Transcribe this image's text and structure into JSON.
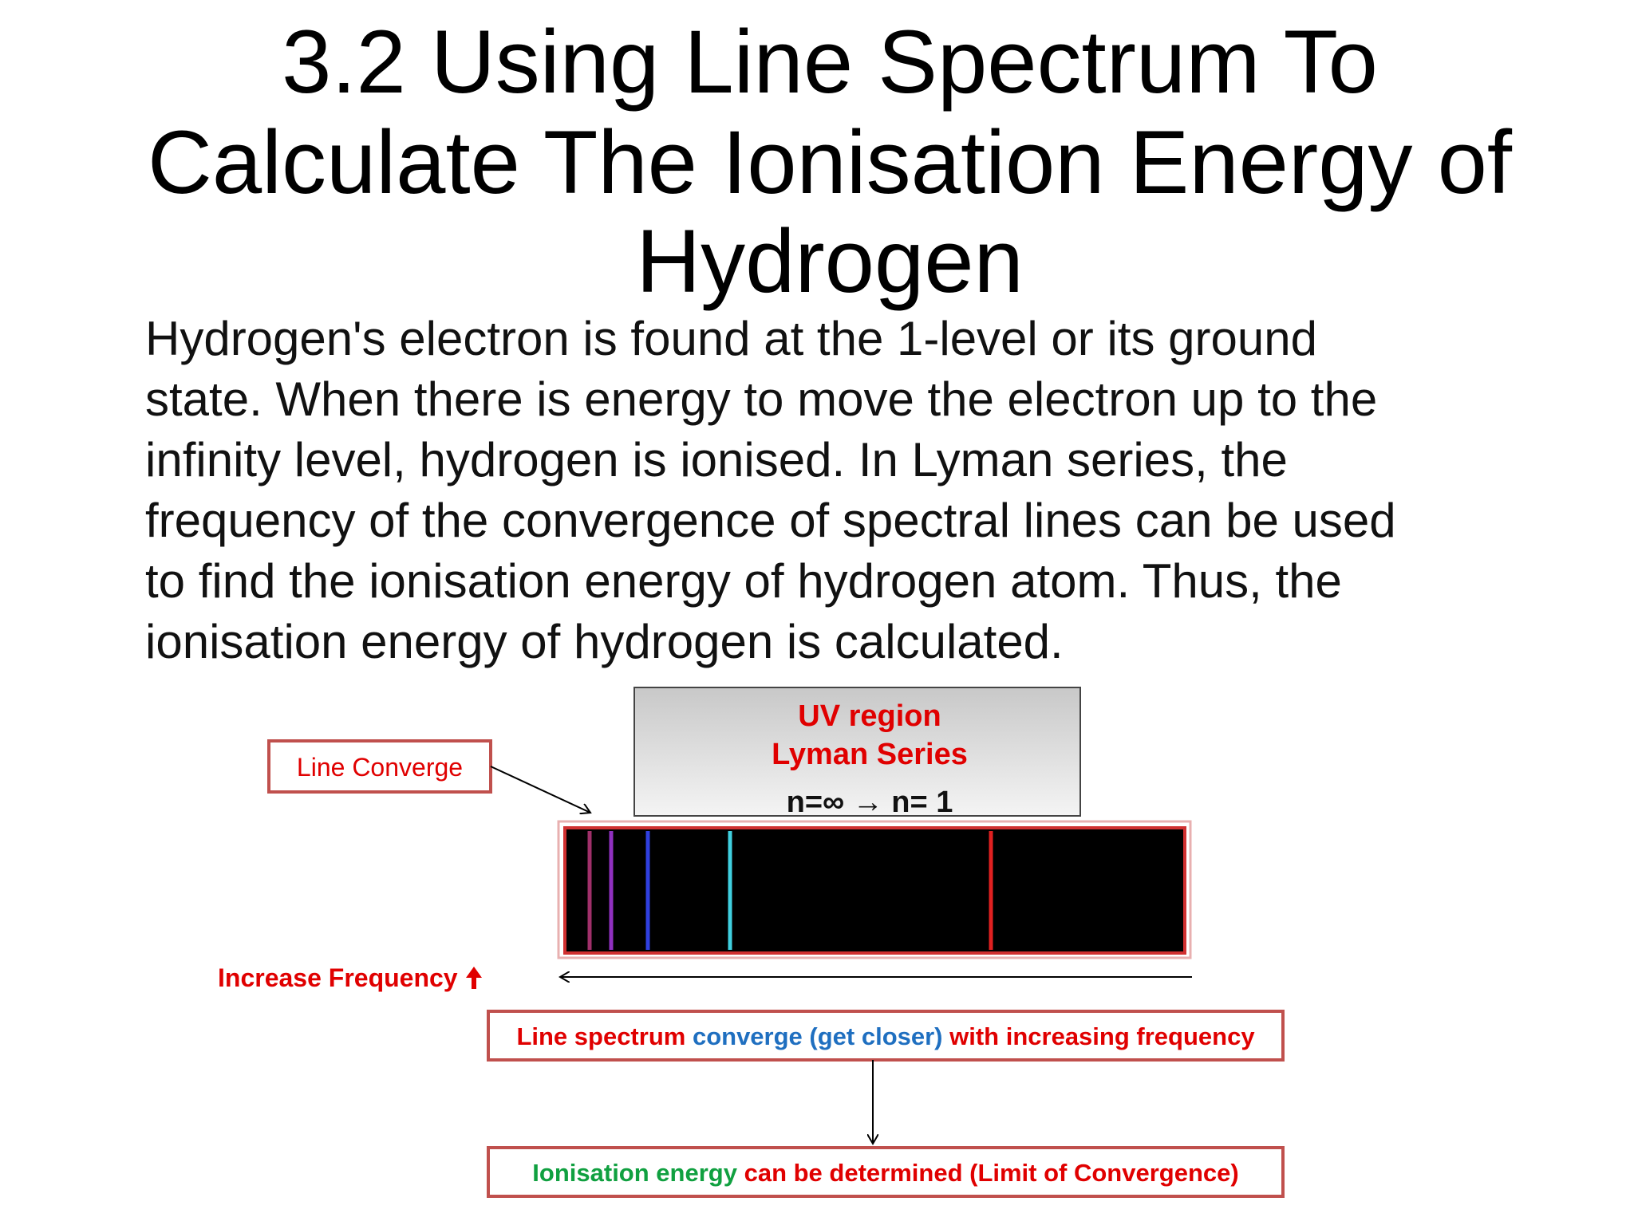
{
  "header": {
    "title_lines": [
      "3.2 Using Line Spectrum To",
      "Calculate The Ionisation Energy of",
      "Hydrogen"
    ]
  },
  "body": {
    "lines": [
      "Hydrogen's electron is found at the 1-level or its ground",
      "state. When there is energy to move the electron up to the",
      "infinity level, hydrogen is ionised. In Lyman series, the",
      "frequency of the convergence of spectral lines can be used",
      "to find the ionisation energy of hydrogen atom. Thus, the",
      "ionisation energy of hydrogen is calculated."
    ]
  },
  "diagram": {
    "uv_region": "UV region",
    "lyman_series": "Lyman Series",
    "transition": "n=∞ → n= 1",
    "line_converge": "Line Converge",
    "increase_frequency": "Increase Frequency",
    "converge_note": [
      "Line spectrum",
      "converge (get closer)",
      "with increasing frequency"
    ],
    "ionisation_note": [
      "Ionisation energy",
      "can be determined (Limit of Convergence)"
    ]
  }
}
